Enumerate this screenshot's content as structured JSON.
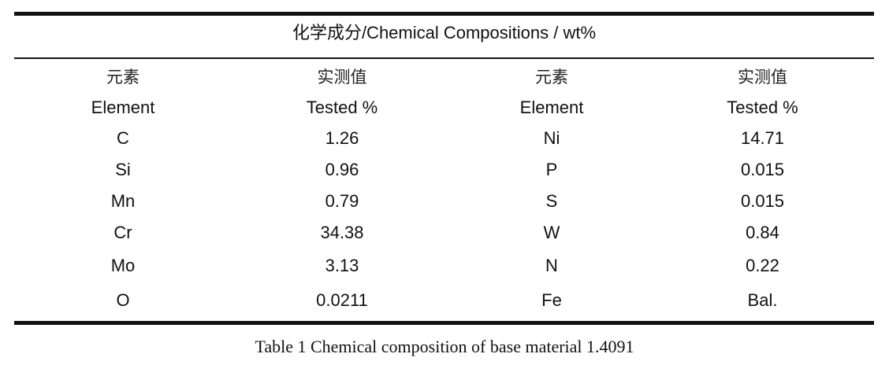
{
  "table": {
    "title": "化学成分/Chemical Compositions / wt%",
    "header_zh": [
      "元素",
      "实测值",
      "元素",
      "实测值"
    ],
    "header_en": [
      "Element",
      "Tested %",
      "Element",
      "Tested %"
    ],
    "rows": [
      [
        "C",
        "1.26",
        "Ni",
        "14.71"
      ],
      [
        "Si",
        "0.96",
        "P",
        "0.015"
      ],
      [
        "Mn",
        "0.79",
        "S",
        "0.015"
      ],
      [
        "Cr",
        "34.38",
        "W",
        "0.84"
      ],
      [
        "Mo",
        "3.13",
        "N",
        "0.22"
      ],
      [
        "O",
        "0.0211",
        "Fe",
        "Bal."
      ]
    ]
  },
  "caption": "Table 1 Chemical composition of base material 1.4091"
}
